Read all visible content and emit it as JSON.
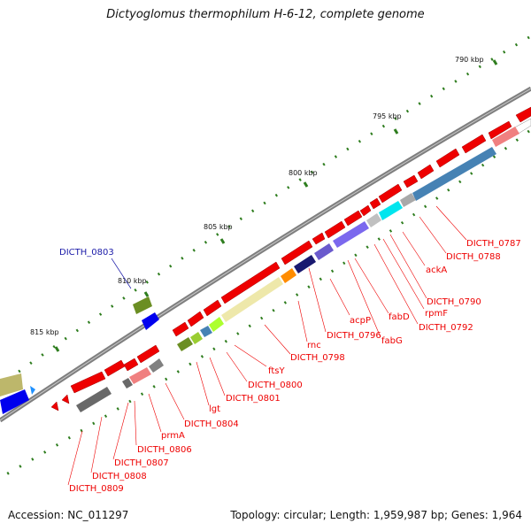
{
  "title": "Dictyoglomus thermophilum H-6-12, complete genome",
  "footer": {
    "accession": "Accession: NC_011297",
    "summary": "Topology: circular; Length: 1,959,987 bp; Genes: 1,964"
  },
  "map": {
    "backbone_color": "#7f7f7f",
    "tick_color": "#2e7d1e",
    "forward_gene_color": "#ee0000",
    "label_color": "#ee0000",
    "highlight_label_color": "#1a1aa8",
    "kbp_labels": [
      "790 kbp",
      "795 kbp",
      "800 kbp",
      "805 kbp",
      "810 kbp",
      "815 kbp"
    ],
    "gene_labels": [
      "DICTH_0787",
      "DICTH_0788",
      "ackA",
      "DICTH_0790",
      "rpmF",
      "DICTH_0792",
      "fabD",
      "fabG",
      "acpP",
      "DICTH_0796",
      "rnc",
      "DICTH_0798",
      "ftsY",
      "DICTH_0800",
      "DICTH_0801",
      "lgt",
      "DICTH_0804",
      "DICTH_0806",
      "prmA",
      "DICTH_0807",
      "DICTH_0808",
      "DICTH_0809"
    ],
    "highlight_label": "DICTH_0803"
  }
}
